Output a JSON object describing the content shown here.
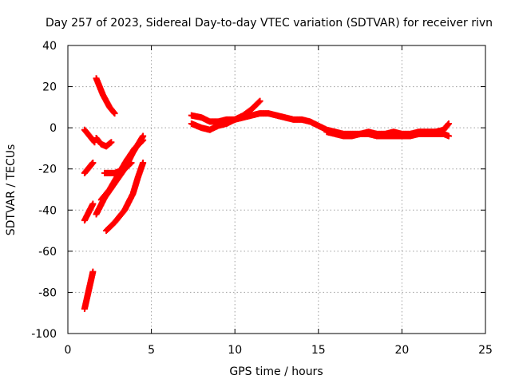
{
  "chart_data": {
    "type": "scatter",
    "title": "Day 257 of 2023, Sidereal Day-to-day VTEC variation (SDTVAR) for receiver rivn",
    "xlabel": "GPS time / hours",
    "ylabel": "SDTVAR / TECUs",
    "xlim": [
      0,
      25
    ],
    "ylim": [
      -100,
      40
    ],
    "x_ticks": [
      "0",
      "5",
      "10",
      "15",
      "20",
      "25"
    ],
    "y_ticks": [
      "40",
      "20",
      "0",
      "-20",
      "-40",
      "-60",
      "-80",
      "-100"
    ],
    "x_tick_values": [
      0,
      5,
      10,
      15,
      20,
      25
    ],
    "y_tick_values": [
      40,
      20,
      0,
      -20,
      -40,
      -60,
      -80,
      -100
    ],
    "grid": true,
    "marker": "plus",
    "color": "#ff0000",
    "tracks": [
      {
        "x": [
          1.0,
          1.5
        ],
        "y": [
          -88,
          -70
        ]
      },
      {
        "x": [
          1.0,
          1.5
        ],
        "y": [
          -45,
          -37
        ]
      },
      {
        "x": [
          1.0,
          1.5
        ],
        "y": [
          -22,
          -17
        ]
      },
      {
        "x": [
          1.0,
          1.3,
          1.6
        ],
        "y": [
          -1,
          -4,
          -7
        ]
      },
      {
        "x": [
          1.7,
          2.1,
          2.5,
          2.8
        ],
        "y": [
          24,
          16,
          10,
          7
        ]
      },
      {
        "x": [
          1.7,
          2.0,
          2.3,
          2.6
        ],
        "y": [
          -5,
          -8,
          -9,
          -7
        ]
      },
      {
        "x": [
          1.7,
          2.2,
          2.8,
          3.4,
          3.9,
          4.5
        ],
        "y": [
          -42,
          -34,
          -27,
          -20,
          -12,
          -4
        ]
      },
      {
        "x": [
          2.0,
          2.5,
          3.0,
          3.5,
          4.0,
          4.5
        ],
        "y": [
          -35,
          -30,
          -23,
          -16,
          -10,
          -6
        ]
      },
      {
        "x": [
          2.2,
          2.8,
          3.4,
          3.8
        ],
        "y": [
          -22,
          -22,
          -20,
          -17
        ]
      },
      {
        "x": [
          2.3,
          2.8,
          3.4,
          3.9,
          4.2,
          4.5
        ],
        "y": [
          -50,
          -46,
          -40,
          -32,
          -24,
          -17
        ]
      },
      {
        "x": [
          7.4,
          8.0,
          8.5,
          9.0,
          9.5,
          10.0,
          10.5,
          11.0,
          11.5
        ],
        "y": [
          2,
          0,
          -1,
          1,
          2,
          4,
          6,
          9,
          13
        ]
      },
      {
        "x": [
          7.4,
          8.0,
          8.5,
          9.0,
          9.5,
          10.0,
          10.5,
          11.0,
          11.5,
          12.0,
          12.5,
          13.0,
          13.5,
          14.0,
          14.5,
          15.0,
          15.5,
          16.0,
          16.5,
          17.0,
          17.5,
          18.0,
          18.5,
          19.0,
          19.5,
          20.0,
          20.5,
          21.0,
          21.5,
          22.0,
          22.5,
          22.8
        ],
        "y": [
          6,
          5,
          3,
          3,
          4,
          4,
          5,
          6,
          7,
          7,
          6,
          5,
          4,
          4,
          3,
          1,
          -1,
          -2,
          -3,
          -3,
          -3,
          -2,
          -3,
          -3,
          -2,
          -3,
          -3,
          -2,
          -2,
          -2,
          -1,
          2
        ]
      },
      {
        "x": [
          15.5,
          16.0,
          16.5,
          17.0,
          17.5,
          18.0,
          18.5,
          19.0,
          19.5,
          20.0,
          20.5,
          21.0,
          21.5,
          22.0,
          22.5,
          22.8
        ],
        "y": [
          -2,
          -3,
          -4,
          -4,
          -3,
          -3,
          -4,
          -4,
          -4,
          -4,
          -4,
          -3,
          -3,
          -3,
          -3,
          -4
        ]
      }
    ]
  }
}
